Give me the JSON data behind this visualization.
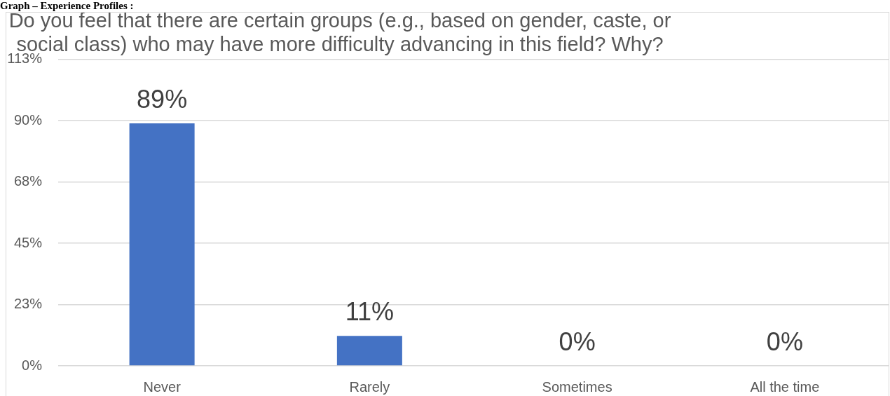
{
  "chart_data": {
    "type": "bar",
    "title": "Do you feel that there are certain groups (e.g., based on gender, caste, or social class) who may have more difficulty advancing in this field? Why?",
    "annotations": [
      "Graph – Experience Profiles :"
    ],
    "categories": [
      "Never",
      "Rarely",
      "Sometimes",
      "All the time"
    ],
    "values": [
      89,
      11,
      0,
      0
    ],
    "value_labels": [
      "89%",
      "11%",
      "0%",
      "0%"
    ],
    "color": "#4472c4",
    "ylim": [
      0,
      112.5
    ],
    "yticks": [
      {
        "value": 0,
        "label": "0%"
      },
      {
        "value": 22.5,
        "label": "23%"
      },
      {
        "value": 45,
        "label": "45%"
      },
      {
        "value": 67.5,
        "label": "68%"
      },
      {
        "value": 90,
        "label": "90%"
      },
      {
        "value": 112.5,
        "label": "113%"
      }
    ],
    "grid": "y"
  }
}
